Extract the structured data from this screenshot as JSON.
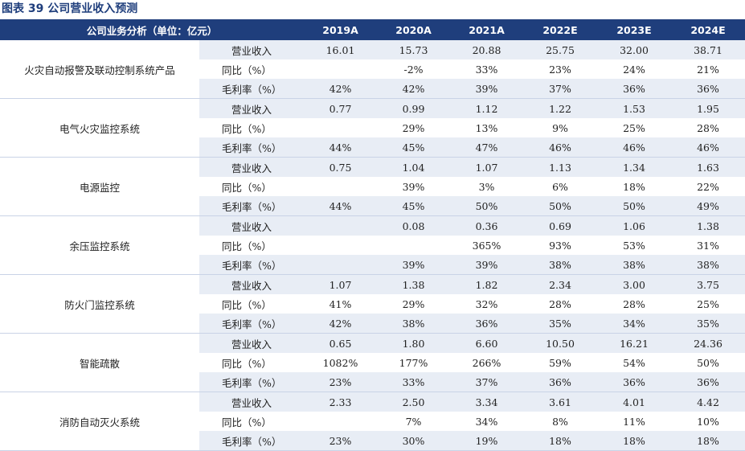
{
  "title": "图表 39 公司营业收入预测",
  "header": {
    "label": "公司业务分析（单位：亿元）",
    "years": [
      "2019A",
      "2020A",
      "2021A",
      "2022E",
      "2023E",
      "2024E"
    ]
  },
  "segments": [
    {
      "name": "火灾自动报警及联动控制系统产品",
      "rows": [
        {
          "label": "营业收入",
          "values": [
            "16.01",
            "15.73",
            "20.88",
            "25.75",
            "32.00",
            "38.71"
          ]
        },
        {
          "label": "同比（%）",
          "values": [
            "",
            "-2%",
            "33%",
            "23%",
            "24%",
            "21%"
          ]
        },
        {
          "label": "毛利率（%）",
          "values": [
            "42%",
            "42%",
            "39%",
            "37%",
            "36%",
            "36%"
          ]
        }
      ]
    },
    {
      "name": "电气火灾监控系统",
      "rows": [
        {
          "label": "营业收入",
          "values": [
            "0.77",
            "0.99",
            "1.12",
            "1.22",
            "1.53",
            "1.95"
          ]
        },
        {
          "label": "同比（%）",
          "values": [
            "",
            "29%",
            "13%",
            "9%",
            "25%",
            "28%"
          ]
        },
        {
          "label": "毛利率（%）",
          "values": [
            "44%",
            "45%",
            "47%",
            "46%",
            "46%",
            "46%"
          ]
        }
      ]
    },
    {
      "name": "电源监控",
      "rows": [
        {
          "label": "营业收入",
          "values": [
            "0.75",
            "1.04",
            "1.07",
            "1.13",
            "1.34",
            "1.63"
          ]
        },
        {
          "label": "同比（%）",
          "values": [
            "",
            "39%",
            "3%",
            "6%",
            "18%",
            "22%"
          ]
        },
        {
          "label": "毛利率（%）",
          "values": [
            "44%",
            "45%",
            "50%",
            "50%",
            "50%",
            "49%"
          ]
        }
      ]
    },
    {
      "name": "余压监控系统",
      "rows": [
        {
          "label": "营业收入",
          "values": [
            "",
            "0.08",
            "0.36",
            "0.69",
            "1.06",
            "1.38"
          ]
        },
        {
          "label": "同比（%）",
          "values": [
            "",
            "",
            "365%",
            "93%",
            "53%",
            "31%"
          ]
        },
        {
          "label": "毛利率（%）",
          "values": [
            "",
            "39%",
            "39%",
            "38%",
            "38%",
            "38%"
          ]
        }
      ]
    },
    {
      "name": "防火门监控系统",
      "rows": [
        {
          "label": "营业收入",
          "values": [
            "1.07",
            "1.38",
            "1.82",
            "2.34",
            "3.00",
            "3.75"
          ]
        },
        {
          "label": "同比（%）",
          "values": [
            "41%",
            "29%",
            "32%",
            "28%",
            "28%",
            "25%"
          ]
        },
        {
          "label": "毛利率（%）",
          "values": [
            "42%",
            "38%",
            "36%",
            "35%",
            "34%",
            "35%"
          ]
        }
      ]
    },
    {
      "name": "智能疏散",
      "rows": [
        {
          "label": "营业收入",
          "values": [
            "0.65",
            "1.80",
            "6.60",
            "10.50",
            "16.21",
            "24.36"
          ]
        },
        {
          "label": "同比（%）",
          "values": [
            "1082%",
            "177%",
            "266%",
            "59%",
            "54%",
            "50%"
          ]
        },
        {
          "label": "毛利率（%）",
          "values": [
            "23%",
            "33%",
            "37%",
            "36%",
            "36%",
            "36%"
          ]
        }
      ]
    },
    {
      "name": "消防自动灭火系统",
      "rows": [
        {
          "label": "营业收入",
          "values": [
            "2.33",
            "2.50",
            "3.34",
            "3.61",
            "4.01",
            "4.42"
          ]
        },
        {
          "label": "同比（%）",
          "values": [
            "",
            "7%",
            "34%",
            "8%",
            "11%",
            "10%"
          ]
        },
        {
          "label": "毛利率（%）",
          "values": [
            "23%",
            "30%",
            "19%",
            "18%",
            "18%",
            "18%"
          ]
        }
      ]
    }
  ]
}
